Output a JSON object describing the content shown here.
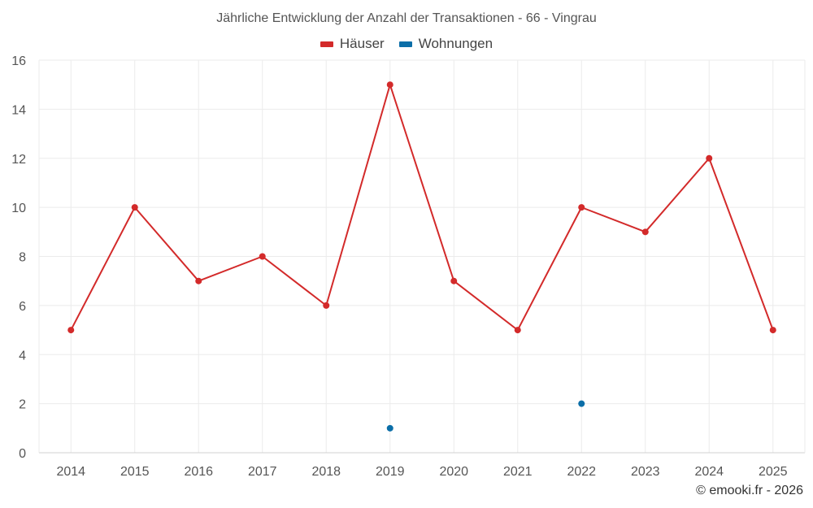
{
  "chart_data": {
    "type": "line",
    "title": "Jährliche Entwicklung der Anzahl der Transaktionen - 66 - Vingrau",
    "categories": [
      "2014",
      "2015",
      "2016",
      "2017",
      "2018",
      "2019",
      "2020",
      "2021",
      "2022",
      "2023",
      "2024",
      "2025"
    ],
    "ylim": [
      0,
      16
    ],
    "yticks": [
      0,
      2,
      4,
      6,
      8,
      10,
      12,
      14,
      16
    ],
    "grid": true,
    "legend_position": "top-center",
    "series": [
      {
        "name": "Häuser",
        "color": "#d32a2a",
        "line": true,
        "values": [
          5,
          10,
          7,
          8,
          6,
          15,
          7,
          5,
          10,
          9,
          12,
          5
        ]
      },
      {
        "name": "Wohnungen",
        "color": "#0b6ea8",
        "line": false,
        "values": [
          null,
          null,
          null,
          null,
          null,
          1,
          null,
          null,
          2,
          null,
          null,
          null
        ]
      }
    ]
  },
  "footer": {
    "credit": "© emooki.fr - 2026"
  }
}
